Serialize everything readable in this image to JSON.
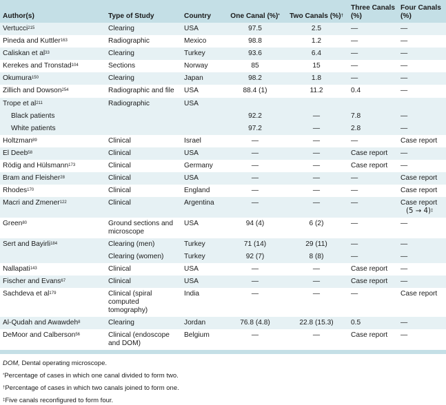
{
  "headers": {
    "author": "Author(s)",
    "study": "Type of Study",
    "country": "Country",
    "one": "One Canal (%)",
    "one_mark": "*",
    "two": "Two Canals (%)",
    "two_mark": "†",
    "three": "Three Canals (%)",
    "four": "Four Canals (%)"
  },
  "rows": [
    {
      "author": "Vertucci",
      "ref": "215",
      "study": "Clearing",
      "country": "USA",
      "one": "97.5",
      "two": "2.5",
      "three": "—",
      "four": "—"
    },
    {
      "author": "Pineda and Kuttler",
      "ref": "163",
      "study": "Radiographic",
      "country": "Mexico",
      "one": "98.8",
      "two": "1.2",
      "three": "—",
      "four": "—"
    },
    {
      "author": "Caliskan et al",
      "ref": "33",
      "study": "Clearing",
      "country": "Turkey",
      "one": "93.6",
      "two": "6.4",
      "three": "—",
      "four": "—"
    },
    {
      "author": "Kerekes and Tronstad",
      "ref": "104",
      "study": "Sections",
      "country": "Norway",
      "one": "85",
      "two": "15",
      "three": "—",
      "four": "—"
    },
    {
      "author": "Okumura",
      "ref": "150",
      "study": "Clearing",
      "country": "Japan",
      "one": "98.2",
      "two": "1.8",
      "three": "—",
      "four": "—"
    },
    {
      "author": "Zillich and Dowson",
      "ref": "254",
      "study": "Radiographic and file",
      "country": "USA",
      "one": "88.4 (1)",
      "two": "11.2",
      "three": "0.4",
      "four": "—"
    },
    {
      "author": "Trope et al",
      "ref": "211",
      "study": "Radiographic",
      "country": "USA",
      "one": "",
      "two": "",
      "three": "",
      "four": ""
    },
    {
      "author": "Black patients",
      "ref": "",
      "study": "",
      "country": "",
      "one": "92.2",
      "two": "—",
      "three": "7.8",
      "four": "—",
      "sub": true
    },
    {
      "author": "White patients",
      "ref": "",
      "study": "",
      "country": "",
      "one": "97.2",
      "two": "—",
      "three": "2.8",
      "four": "—",
      "sub": true
    },
    {
      "author": "Holtzman",
      "ref": "89",
      "study": "Clinical",
      "country": "Israel",
      "one": "—",
      "two": "—",
      "three": "—",
      "four": "Case report"
    },
    {
      "author": "El Deeb",
      "ref": "58",
      "study": "Clinical",
      "country": "USA",
      "one": "—",
      "two": "—",
      "three": "Case report",
      "four": "—"
    },
    {
      "author": "Rödig and Hülsmann",
      "ref": "173",
      "study": "Clinical",
      "country": "Germany",
      "one": "—",
      "two": "—",
      "three": "Case report",
      "four": "—"
    },
    {
      "author": "Bram and Fleisher",
      "ref": "28",
      "study": "Clinical",
      "country": "USA",
      "one": "—",
      "two": "—",
      "three": "—",
      "four": "Case report"
    },
    {
      "author": "Rhodes",
      "ref": "170",
      "study": "Clinical",
      "country": "England",
      "one": "—",
      "two": "—",
      "three": "—",
      "four": "Case report"
    },
    {
      "author": "Macri and Zmener",
      "ref": "122",
      "study": "Clinical",
      "country": "Argentina",
      "one": "—",
      "two": "—",
      "three": "—",
      "four": "Case report",
      "four_extra": "(5 → 4)",
      "four_mark": "‡"
    },
    {
      "author": "Green",
      "ref": "80",
      "study": "Ground sections and microscope",
      "country": "USA",
      "one": "94 (4)",
      "two": "6 (2)",
      "three": "—",
      "four": "—"
    },
    {
      "author": "Sert and Bayirli",
      "ref": "184",
      "study": "Clearing (men)",
      "country": "Turkey",
      "one": "71 (14)",
      "two": "29 (11)",
      "three": "—",
      "four": "—"
    },
    {
      "author": "",
      "ref": "",
      "study": "Clearing (women)",
      "country": "Turkey",
      "one": "92 (7)",
      "two": "8 (8)",
      "three": "—",
      "four": "—"
    },
    {
      "author": "Nallapati",
      "ref": "143",
      "study": "Clinical",
      "country": "USA",
      "one": "—",
      "two": "—",
      "three": "Case report",
      "four": "—"
    },
    {
      "author": "Fischer and Evans",
      "ref": "67",
      "study": "Clinical",
      "country": "USA",
      "one": "—",
      "two": "—",
      "three": "Case report",
      "four": "—"
    },
    {
      "author": "Sachdeva et al",
      "ref": "179",
      "study": "Clinical (spiral computed tomography)",
      "country": "India",
      "one": "—",
      "two": "—",
      "three": "—",
      "four": "Case report"
    },
    {
      "author": "Al-Qudah and Awawdeh",
      "ref": "8",
      "study": "Clearing",
      "country": "Jordan",
      "one": "76.8 (4.8)",
      "two": "22.8 (15.3)",
      "three": "0.5",
      "four": "—"
    },
    {
      "author": "DeMoor and Calberson",
      "ref": "56",
      "study": "Clinical (endoscope and DOM)",
      "country": "Belgium",
      "one": "—",
      "two": "—",
      "three": "Case report",
      "four": "—"
    }
  ],
  "notes": {
    "dom_abbr": "DOM,",
    "dom_text": " Dental operating microscope.",
    "star_mark": "*",
    "star_text": "Percentage of cases in which one canal divided to form two.",
    "dagger_mark": "†",
    "dagger_text": "Percentage of cases in which two canals joined to form one.",
    "ddagger_mark": "‡",
    "ddagger_text": "Five canals reconfigured to form four."
  }
}
